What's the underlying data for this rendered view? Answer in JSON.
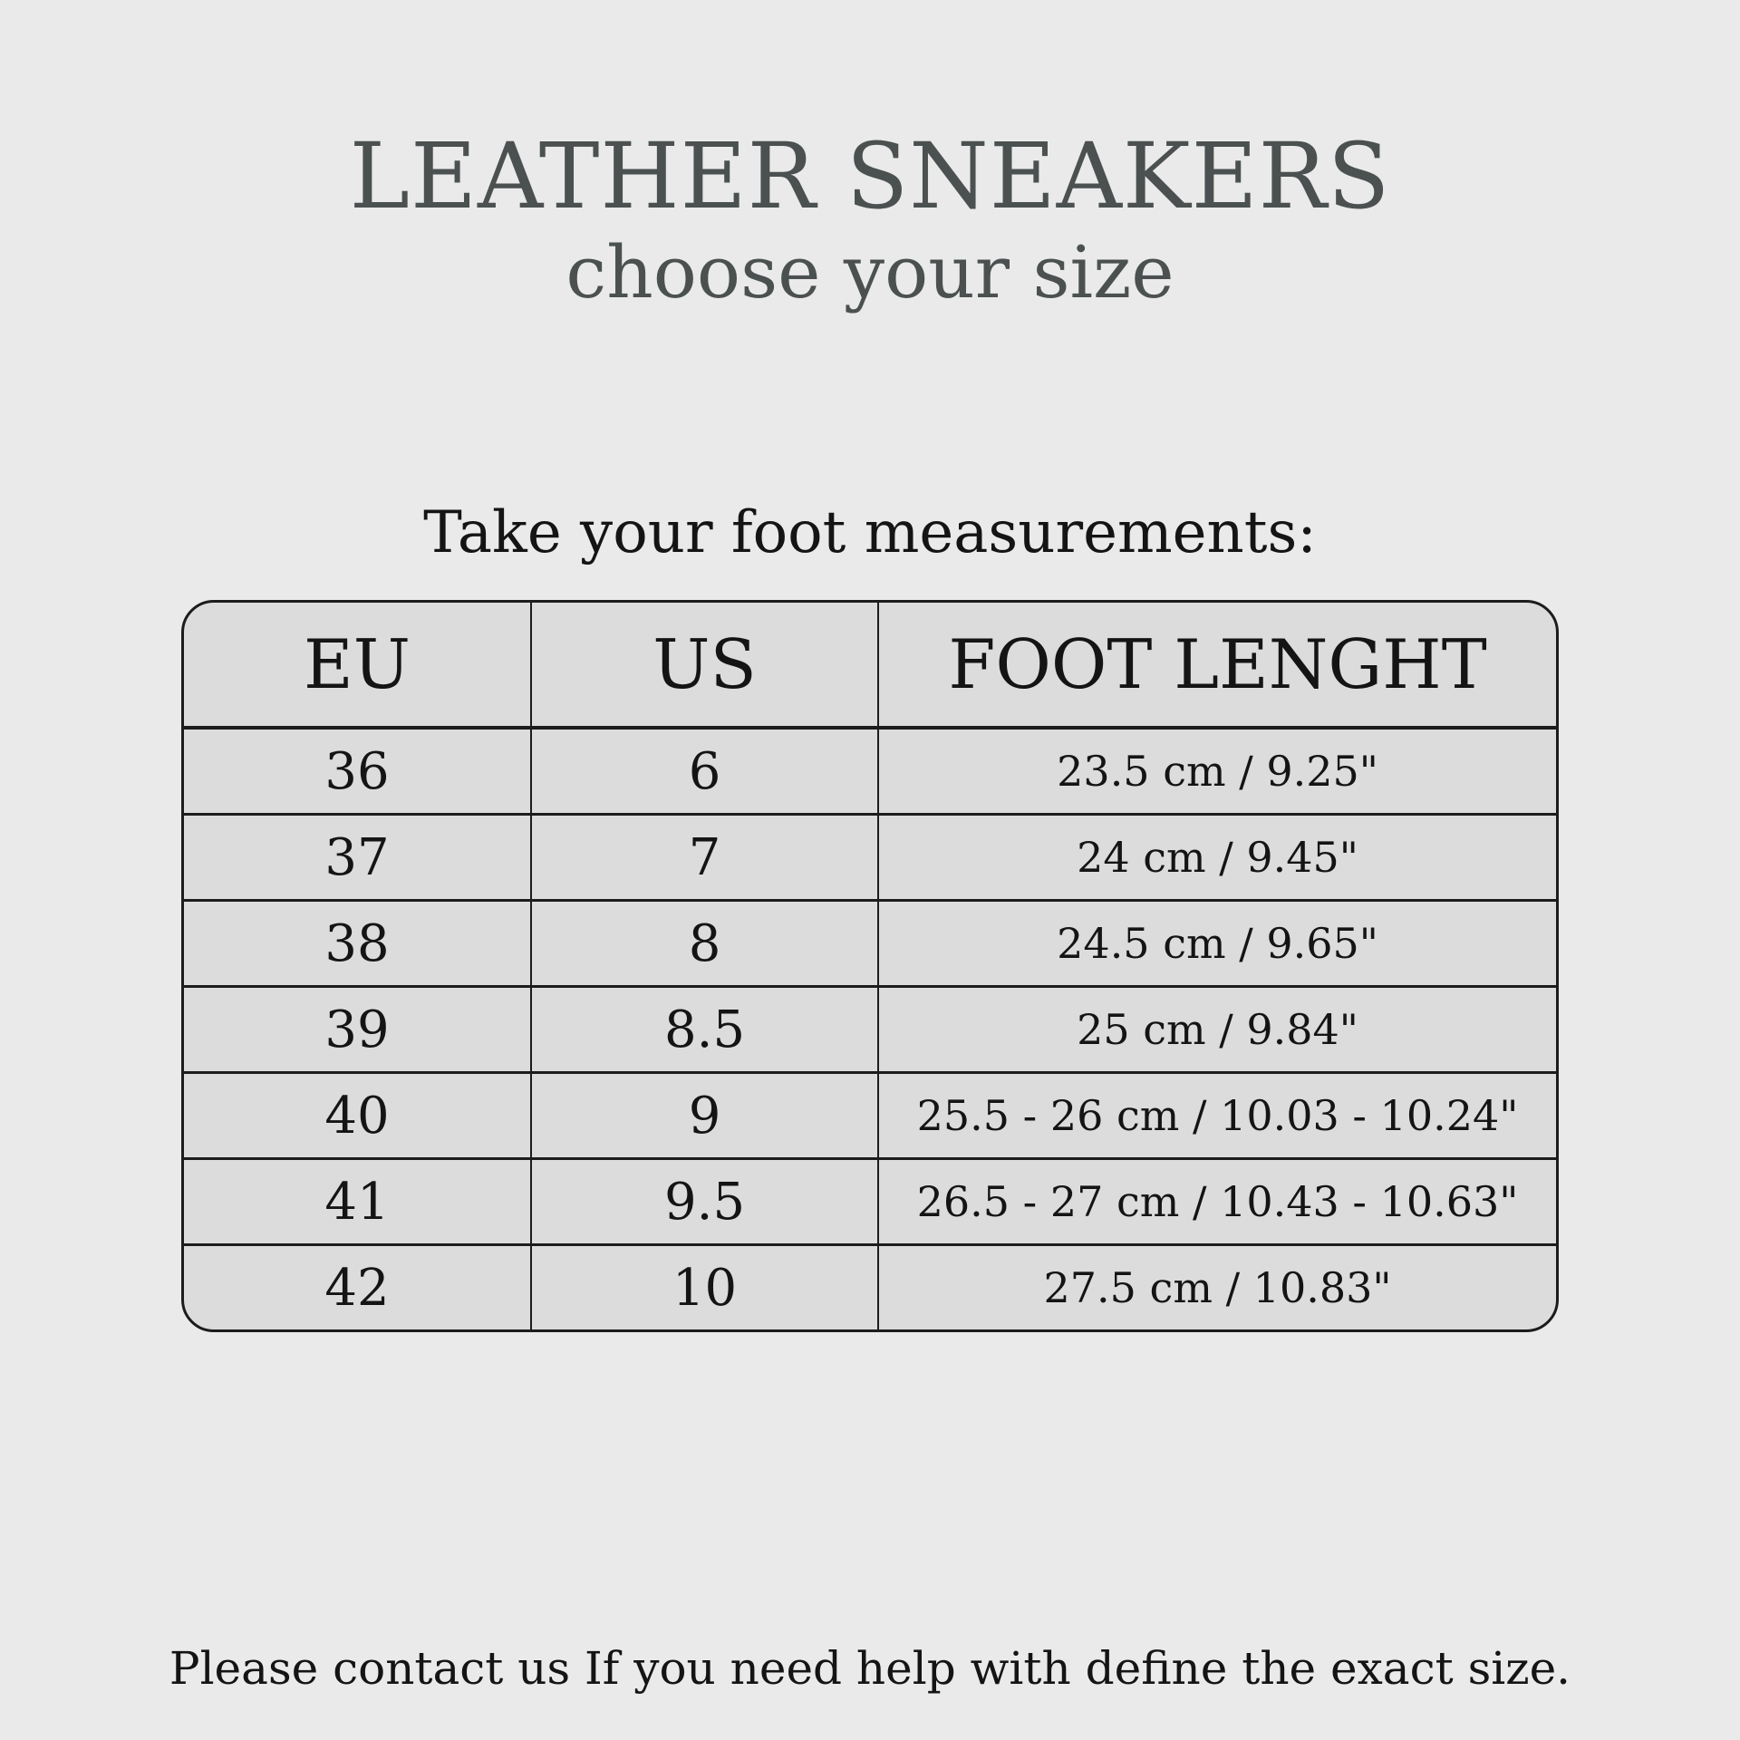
{
  "page": {
    "background_color": "#e9eae9",
    "table_cell_color": "#dbdcdb",
    "border_color": "#1c1c1c",
    "heading_text_color": "#4b5150",
    "body_text_color": "#141414"
  },
  "header": {
    "title": "LEATHER SNEAKERS",
    "subtitle": "choose your size"
  },
  "section": {
    "instruction": "Take your foot measurements:"
  },
  "table": {
    "columns": [
      "EU",
      "US",
      "FOOT LENGHT"
    ],
    "rows": [
      {
        "eu": "36",
        "us": "6",
        "foot_length": "23.5 cm / 9.25\""
      },
      {
        "eu": "37",
        "us": "7",
        "foot_length": "24 cm / 9.45\""
      },
      {
        "eu": "38",
        "us": "8",
        "foot_length": "24.5 cm / 9.65\""
      },
      {
        "eu": "39",
        "us": "8.5",
        "foot_length": "25 cm / 9.84\""
      },
      {
        "eu": "40",
        "us": "9",
        "foot_length": "25.5 - 26 cm / 10.03 - 10.24\""
      },
      {
        "eu": "41",
        "us": "9.5",
        "foot_length": "26.5 - 27 cm / 10.43 - 10.63\""
      },
      {
        "eu": "42",
        "us": "10",
        "foot_length": "27.5 cm / 10.83\""
      }
    ]
  },
  "footer": {
    "note": "Please contact us If you need help with define the exact size."
  }
}
